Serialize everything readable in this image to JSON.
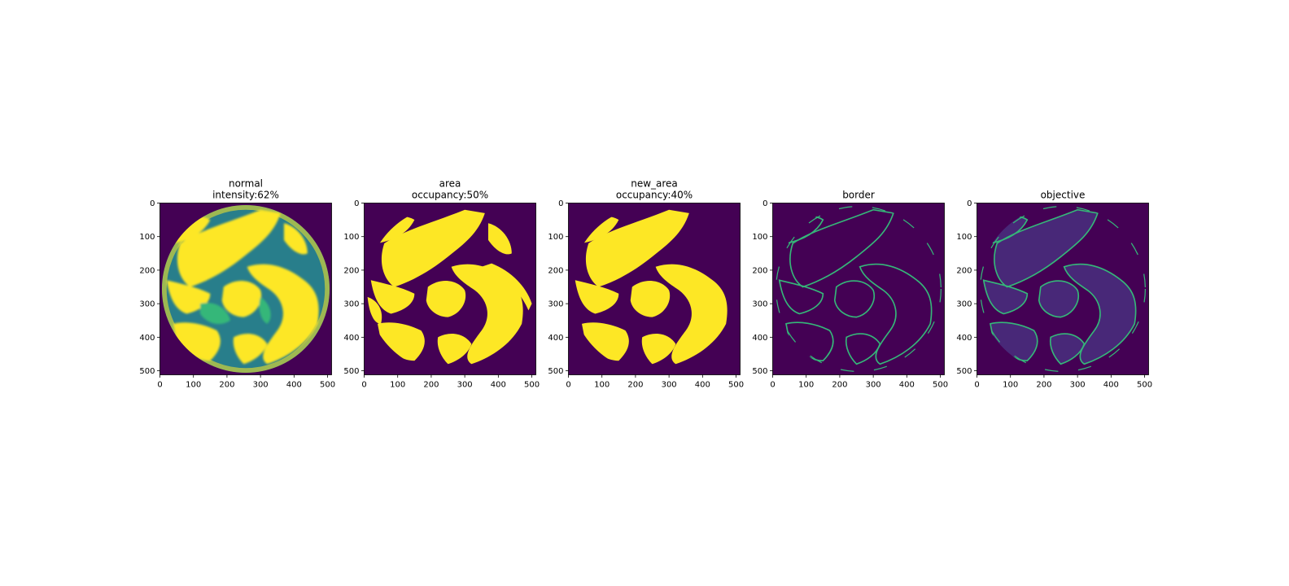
{
  "chart_data": [
    {
      "type": "heatmap",
      "title_lines": [
        "normal",
        "intensity:62%"
      ],
      "image_size": 512,
      "xticks": [
        0,
        100,
        200,
        300,
        400,
        500
      ],
      "yticks": [
        0,
        100,
        200,
        300,
        400,
        500
      ],
      "xlim": [
        0,
        512
      ],
      "ylim": [
        512,
        0
      ],
      "colormap": "viridis",
      "content": "intensity"
    },
    {
      "type": "heatmap",
      "title_lines": [
        "area",
        "occupancy:50%"
      ],
      "image_size": 512,
      "xticks": [
        0,
        100,
        200,
        300,
        400,
        500
      ],
      "yticks": [
        0,
        100,
        200,
        300,
        400,
        500
      ],
      "xlim": [
        0,
        512
      ],
      "ylim": [
        512,
        0
      ],
      "colormap": "viridis",
      "content": "binary_mask",
      "occupancy": 0.5
    },
    {
      "type": "heatmap",
      "title_lines": [
        "new_area",
        "occupancy:40%"
      ],
      "image_size": 512,
      "xticks": [
        0,
        100,
        200,
        300,
        400,
        500
      ],
      "yticks": [
        0,
        100,
        200,
        300,
        400,
        500
      ],
      "xlim": [
        0,
        512
      ],
      "ylim": [
        512,
        0
      ],
      "colormap": "viridis",
      "content": "binary_mask",
      "occupancy": 0.4
    },
    {
      "type": "heatmap",
      "title_lines": [
        "border"
      ],
      "image_size": 512,
      "xticks": [
        0,
        100,
        200,
        300,
        400,
        500
      ],
      "yticks": [
        0,
        100,
        200,
        300,
        400,
        500
      ],
      "xlim": [
        0,
        512
      ],
      "ylim": [
        512,
        0
      ],
      "colormap": "viridis",
      "content": "edges"
    },
    {
      "type": "heatmap",
      "title_lines": [
        "objective"
      ],
      "image_size": 512,
      "xticks": [
        0,
        100,
        200,
        300,
        400,
        500
      ],
      "yticks": [
        0,
        100,
        200,
        300,
        400,
        500
      ],
      "xlim": [
        0,
        512
      ],
      "ylim": [
        512,
        0
      ],
      "colormap": "viridis",
      "content": "edges_over_fill"
    }
  ],
  "colors": {
    "background": "#440154",
    "foreground": "#fde725",
    "edge": "#35b779",
    "mid": "#3b528b",
    "fill_soft": "#482878",
    "teal": "#21918c"
  }
}
